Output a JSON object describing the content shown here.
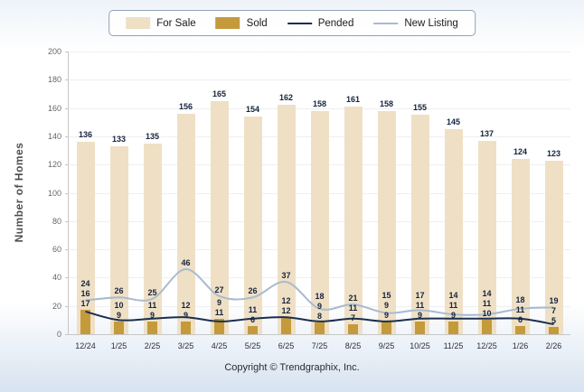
{
  "legend": {
    "items": [
      {
        "label": "For Sale",
        "type": "bar",
        "color": "#EFE0C5"
      },
      {
        "label": "Sold",
        "type": "bar",
        "color": "#C49A3B"
      },
      {
        "label": "Pended",
        "type": "line",
        "color": "#1B2F4E"
      },
      {
        "label": "New Listing",
        "type": "line",
        "color": "#A9BACF"
      }
    ]
  },
  "y_axis": {
    "title": "Number of Homes",
    "min": 0,
    "max": 200,
    "step": 20
  },
  "footer": {
    "copyright": "Copyright © Trendgraphix, Inc."
  },
  "colors": {
    "for_sale": "#EFE0C5",
    "sold": "#C49A3B",
    "pended": "#1B2F4E",
    "new_listing": "#A9BACF",
    "value_label_text": "#16243D"
  },
  "chart_data": {
    "type": "bar",
    "categories": [
      "12/24",
      "1/25",
      "2/25",
      "3/25",
      "4/25",
      "5/25",
      "6/25",
      "7/25",
      "8/25",
      "9/25",
      "10/25",
      "11/25",
      "12/25",
      "1/26",
      "2/26"
    ],
    "series": [
      {
        "name": "For Sale",
        "type": "bar",
        "color": "#EFE0C5",
        "values": [
          136,
          133,
          135,
          156,
          165,
          154,
          162,
          158,
          161,
          158,
          155,
          145,
          137,
          124,
          123
        ]
      },
      {
        "name": "Sold",
        "type": "bar",
        "color": "#C49A3B",
        "values": [
          17,
          9,
          9,
          9,
          11,
          6,
          12,
          8,
          7,
          9,
          9,
          9,
          10,
          6,
          5
        ]
      },
      {
        "name": "Pended",
        "type": "line",
        "color": "#1B2F4E",
        "values": [
          16,
          10,
          11,
          12,
          9,
          11,
          12,
          9,
          11,
          9,
          11,
          11,
          11,
          11,
          7
        ]
      },
      {
        "name": "New Listing",
        "type": "line",
        "color": "#A9BACF",
        "values": [
          24,
          26,
          25,
          46,
          27,
          26,
          37,
          18,
          21,
          15,
          17,
          14,
          14,
          18,
          19
        ]
      }
    ],
    "title": "",
    "xlabel": "",
    "ylabel": "Number of Homes",
    "ylim": [
      0,
      200
    ],
    "y_tick_step": 20,
    "grid": true,
    "legend_position": "top",
    "value_labels": true
  }
}
